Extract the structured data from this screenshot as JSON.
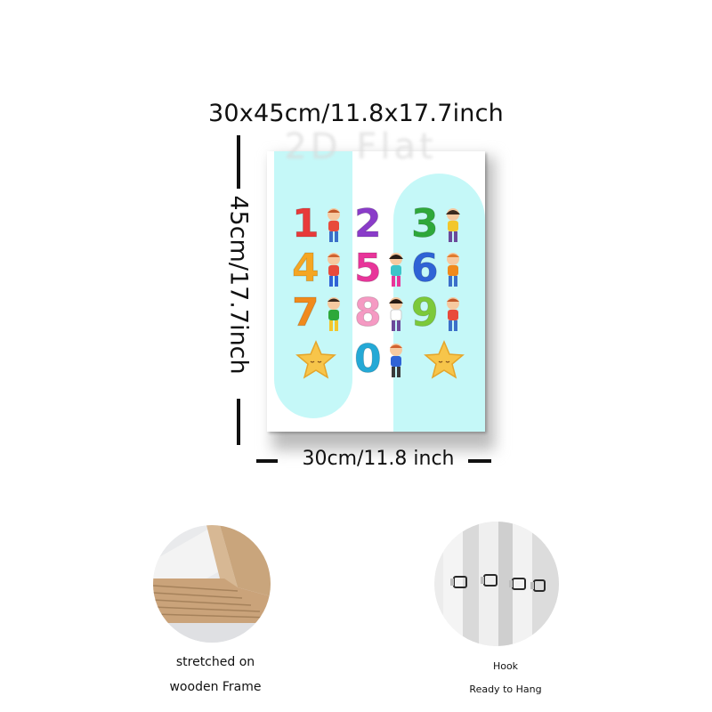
{
  "title": "30x45cm/11.8x17.7inch",
  "watermark": "2D Flat",
  "vertical_dimension": "45cm/17.7inch",
  "horizontal_dimension": "30cm/11.8 inch",
  "poster": {
    "background_color": "#c5f8f8",
    "numbers": [
      {
        "value": "1",
        "color": "#e83a3a"
      },
      {
        "value": "2",
        "color": "#8a3cc9"
      },
      {
        "value": "3",
        "color": "#2ea83a"
      },
      {
        "value": "4",
        "color": "#f5a623"
      },
      {
        "value": "5",
        "color": "#e8359a"
      },
      {
        "value": "6",
        "color": "#2f63d6"
      },
      {
        "value": "7",
        "color": "#f08a1c"
      },
      {
        "value": "8",
        "color": "#f59ac3"
      },
      {
        "value": "9",
        "color": "#7cc93a"
      },
      {
        "value": "0",
        "color": "#24a9d6"
      }
    ]
  },
  "features": [
    {
      "icon": "wooden-frame-photo",
      "line1": "stretched on",
      "line2": "wooden Frame"
    },
    {
      "icon": "hook-photo",
      "line1": "Hook",
      "line2": "Ready to Hang"
    }
  ]
}
